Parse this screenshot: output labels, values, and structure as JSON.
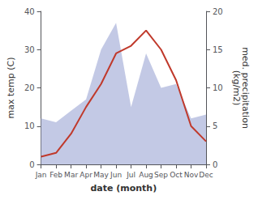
{
  "chart_data": {
    "type": "line",
    "categories": [
      "Jan",
      "Feb",
      "Mar",
      "Apr",
      "May",
      "Jun",
      "Jul",
      "Aug",
      "Sep",
      "Oct",
      "Nov",
      "Dec"
    ],
    "xlabel": "date (month)",
    "ylabel": "max temp (C)",
    "y2label": "med. precipitation\n(kg/m2)",
    "ylim": [
      0,
      40
    ],
    "yticks": [
      0,
      10,
      20,
      30,
      40
    ],
    "y2lim": [
      0,
      20
    ],
    "y2ticks": [
      0,
      5,
      10,
      15,
      20
    ],
    "grid": false,
    "series": [
      {
        "type": "area",
        "axis": "y2",
        "color": "#b8c0e0",
        "values": [
          6.0,
          5.5,
          7.0,
          8.5,
          15.0,
          18.5,
          7.5,
          14.5,
          10.0,
          10.5,
          6.0,
          6.5
        ]
      },
      {
        "type": "line",
        "color": "#c0392b",
        "values": [
          2,
          3,
          8,
          15,
          21,
          29,
          31,
          35,
          30,
          22,
          10,
          6
        ]
      }
    ]
  }
}
